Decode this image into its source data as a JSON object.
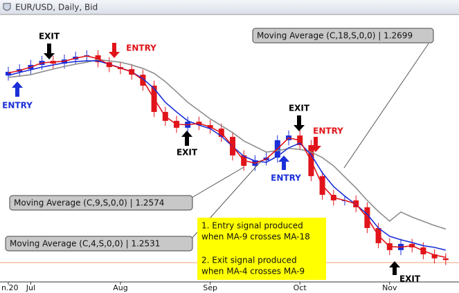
{
  "chart_data": {
    "type": "candlestick",
    "title": "EUR/USD, Daily, Bid",
    "categories": [
      "n.20",
      null,
      "Jul",
      null,
      null,
      null,
      null,
      null,
      null,
      null,
      "Aug",
      null,
      null,
      null,
      null,
      null,
      null,
      null,
      "Sep",
      null,
      null,
      null,
      null,
      null,
      null,
      null,
      "Oct",
      null,
      null,
      null,
      null,
      null,
      null,
      null,
      "Nov",
      null,
      null,
      null,
      null,
      null
    ],
    "open": [
      1.361,
      1.3632,
      1.3648,
      1.3673,
      1.3697,
      1.3681,
      1.3705,
      1.3722,
      1.373,
      1.3689,
      1.366,
      1.3648,
      1.3615,
      1.355,
      1.3394,
      1.3341,
      1.33,
      1.3336,
      1.3316,
      1.3295,
      1.3246,
      1.3136,
      1.3074,
      1.3107,
      1.3123,
      1.3226,
      1.3254,
      1.3197,
      1.3013,
      1.2902,
      1.2869,
      1.2869,
      1.2828,
      1.2705,
      1.2615,
      1.2574,
      1.2611,
      1.259,
      1.2549,
      1.2525
    ],
    "high": [
      1.3662,
      1.3678,
      1.3703,
      1.3727,
      1.3727,
      1.3735,
      1.3752,
      1.376,
      1.376,
      1.3719,
      1.369,
      1.3678,
      1.3645,
      1.358,
      1.3424,
      1.3371,
      1.3366,
      1.3366,
      1.3346,
      1.3325,
      1.3276,
      1.3166,
      1.3137,
      1.3153,
      1.3256,
      1.3284,
      1.3284,
      1.3227,
      1.3043,
      1.2932,
      1.2899,
      1.2899,
      1.2858,
      1.2735,
      1.2645,
      1.2641,
      1.2641,
      1.262,
      1.2579,
      1.2555
    ],
    "low": [
      1.358,
      1.3602,
      1.3618,
      1.3643,
      1.3651,
      1.3651,
      1.3675,
      1.3692,
      1.3659,
      1.363,
      1.3618,
      1.3585,
      1.352,
      1.3364,
      1.3311,
      1.327,
      1.327,
      1.3286,
      1.3265,
      1.3216,
      1.3106,
      1.3044,
      1.3044,
      1.3077,
      1.3093,
      1.3196,
      1.3167,
      1.2983,
      1.2872,
      1.2839,
      1.2839,
      1.2798,
      1.2675,
      1.2585,
      1.2544,
      1.2544,
      1.256,
      1.2519,
      1.2495,
      1.2485
    ],
    "close": [
      1.3632,
      1.3648,
      1.3673,
      1.3697,
      1.3681,
      1.3705,
      1.3722,
      1.373,
      1.3689,
      1.366,
      1.3648,
      1.3615,
      1.355,
      1.3394,
      1.3341,
      1.33,
      1.3336,
      1.3316,
      1.3295,
      1.3246,
      1.3136,
      1.3074,
      1.3107,
      1.3123,
      1.3226,
      1.3254,
      1.3197,
      1.3013,
      1.2902,
      1.2869,
      1.2869,
      1.2828,
      1.2705,
      1.2615,
      1.2574,
      1.2611,
      1.259,
      1.2549,
      1.2525,
      1.2515
    ],
    "up_color": "#1a2fd8",
    "down_color": "#e0141a",
    "series": [
      {
        "name": "Moving Average (C,18,S,0,0) | 1.2699",
        "color": "#8c8c8c",
        "values": [
          1.3599,
          1.3607,
          1.3615,
          1.3632,
          1.3648,
          1.3664,
          1.3677,
          1.3689,
          1.3705,
          1.3697,
          1.3689,
          1.3673,
          1.3652,
          1.3623,
          1.3574,
          1.3513,
          1.3451,
          1.3402,
          1.3353,
          1.3312,
          1.3271,
          1.3222,
          1.3189,
          1.3156,
          1.3164,
          1.3177,
          1.3172,
          1.3156,
          1.3123,
          1.3074,
          1.3008,
          1.2943,
          1.2869,
          1.2803,
          1.2746,
          1.28,
          1.277,
          1.2745,
          1.272,
          1.2699
        ]
      },
      {
        "name": "Moving Average (C,9,S,0,0) | 1.2574",
        "color": "#1a2fd8",
        "values": [
          1.3611,
          1.3628,
          1.3644,
          1.366,
          1.3673,
          1.3685,
          1.3693,
          1.3697,
          1.3697,
          1.3677,
          1.3656,
          1.3632,
          1.3591,
          1.3533,
          1.3451,
          1.3394,
          1.3341,
          1.3316,
          1.3295,
          1.325,
          1.3189,
          1.3131,
          1.3103,
          1.3095,
          1.3131,
          1.3181,
          1.3209,
          1.314,
          1.3033,
          1.2951,
          1.2894,
          1.2844,
          1.2787,
          1.2705,
          1.2656,
          1.2635,
          1.2619,
          1.26,
          1.259,
          1.2574
        ]
      },
      {
        "name": "Moving Average (C,4,S,0,0) | 1.2531",
        "color": "#e0141a",
        "values": [
          1.3625,
          1.364,
          1.366,
          1.3685,
          1.369,
          1.3695,
          1.3713,
          1.3726,
          1.371,
          1.3675,
          1.3654,
          1.3632,
          1.3583,
          1.3472,
          1.3367,
          1.332,
          1.3318,
          1.3326,
          1.3305,
          1.327,
          1.3191,
          1.3105,
          1.309,
          1.3115,
          1.3175,
          1.324,
          1.3225,
          1.3105,
          1.2958,
          1.2885,
          1.2869,
          1.2848,
          1.2766,
          1.266,
          1.2595,
          1.2592,
          1.26,
          1.257,
          1.2545,
          1.2531
        ]
      }
    ],
    "ylim": [
      1.2385,
      1.3968
    ],
    "price_line": 1.25,
    "price_line_color": "#f0a070",
    "annotations": [
      {
        "text": "EXIT",
        "color": "#000000"
      },
      {
        "text": "ENTRY",
        "color": "#e0141a"
      },
      {
        "text": "ENTRY",
        "color": "#1a2fd8"
      },
      {
        "text": "EXIT",
        "color": "#000000"
      },
      {
        "text": "EXIT",
        "color": "#000000"
      },
      {
        "text": "ENTRY",
        "color": "#e0141a"
      },
      {
        "text": "ENTRY",
        "color": "#1a2fd8"
      },
      {
        "text": "EXIT",
        "color": "#000000"
      }
    ],
    "notes": [
      "1. Entry signal produced",
      "when MA-9 crosses MA-18",
      "2. Exit signal produced",
      "when MA-4 crosses MA-9"
    ]
  }
}
